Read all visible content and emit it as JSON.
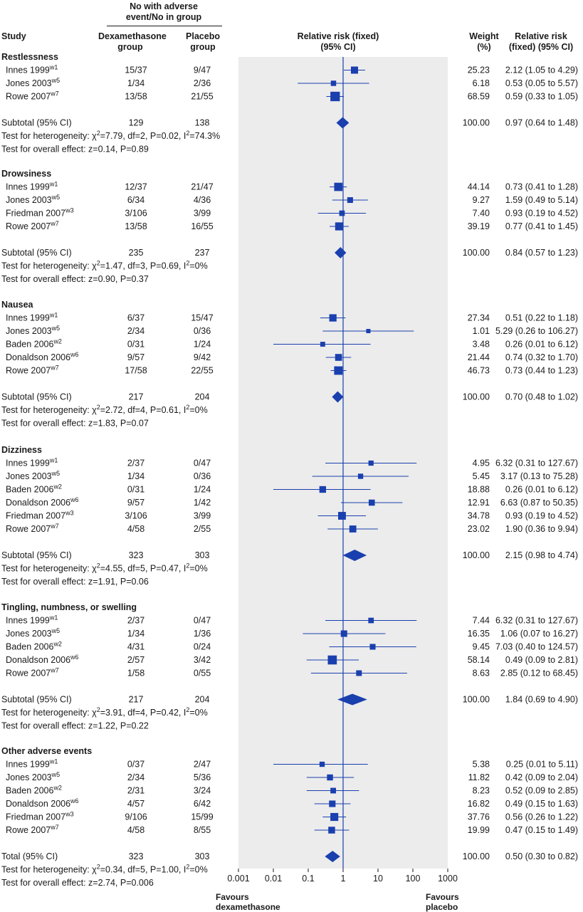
{
  "header": {
    "group_title": "No with adverse event/No in group",
    "study": "Study",
    "dex_group": "Dexamethasone group",
    "placebo_group": "Placebo group",
    "rr_plot": "Relative risk (fixed) (95% CI)",
    "weight": "Weight (%)",
    "rr_text": "Relative risk (fixed) (95% CI)"
  },
  "footer": {
    "favours_left": "Favours dexamethasone",
    "favours_right": "Favours placebo"
  },
  "colors": {
    "marker": "#1a3fae",
    "shade": "#ececec",
    "line": "#1a3fae",
    "text": "#1a1a1a"
  },
  "chart_data": {
    "type": "forest",
    "x_scale": "log",
    "xlim": [
      0.001,
      1000
    ],
    "x_ticks": [
      "0.001",
      "0.01",
      "0.1",
      "1",
      "10",
      "100",
      "1000"
    ],
    "groups": [
      {
        "name": "Restlessness",
        "studies": [
          {
            "study": "Innes 1999",
            "ref": "w1",
            "dex": "15/37",
            "placebo": "9/47",
            "weight": "25.23",
            "ci_text": "2.12 (1.05 to 4.29)",
            "rr": 2.12,
            "lo": 1.05,
            "hi": 4.29
          },
          {
            "study": "Jones 2003",
            "ref": "w5",
            "dex": "1/34",
            "placebo": "2/36",
            "weight": "6.18",
            "ci_text": "0.53 (0.05 to 5.57)",
            "rr": 0.53,
            "lo": 0.05,
            "hi": 5.57
          },
          {
            "study": "Rowe 2007",
            "ref": "w7",
            "dex": "13/58",
            "placebo": "21/55",
            "weight": "68.59",
            "ci_text": "0.59 (0.33 to 1.05)",
            "rr": 0.59,
            "lo": 0.33,
            "hi": 1.05
          }
        ],
        "subtotal": {
          "label": "Subtotal (95% CI)",
          "dex": "129",
          "placebo": "138",
          "weight": "100.00",
          "ci_text": "0.97 (0.64 to 1.48)",
          "rr": 0.97,
          "lo": 0.64,
          "hi": 1.48
        },
        "het_prefix": "Test for heterogeneity: χ",
        "het_mid": "=7.79, df=2, P=0.02, I",
        "het_end": "=74.3%",
        "overall": "Test for overall effect: z=0.14, P=0.89"
      },
      {
        "name": "Drowsiness",
        "studies": [
          {
            "study": "Innes 1999",
            "ref": "w1",
            "dex": "12/37",
            "placebo": "21/47",
            "weight": "44.14",
            "ci_text": "0.73 (0.41 to 1.28)",
            "rr": 0.73,
            "lo": 0.41,
            "hi": 1.28
          },
          {
            "study": "Jones 2003",
            "ref": "w5",
            "dex": "6/34",
            "placebo": "4/36",
            "weight": "9.27",
            "ci_text": "1.59 (0.49 to 5.14)",
            "rr": 1.59,
            "lo": 0.49,
            "hi": 5.14
          },
          {
            "study": "Friedman 2007",
            "ref": "w3",
            "dex": "3/106",
            "placebo": "3/99",
            "weight": "7.40",
            "ci_text": "0.93 (0.19 to 4.52)",
            "rr": 0.93,
            "lo": 0.19,
            "hi": 4.52
          },
          {
            "study": "Rowe 2007",
            "ref": "w7",
            "dex": "13/58",
            "placebo": "16/55",
            "weight": "39.19",
            "ci_text": "0.77 (0.41 to 1.45)",
            "rr": 0.77,
            "lo": 0.41,
            "hi": 1.45
          }
        ],
        "subtotal": {
          "label": "Subtotal (95% CI)",
          "dex": "235",
          "placebo": "237",
          "weight": "100.00",
          "ci_text": "0.84 (0.57 to 1.23)",
          "rr": 0.84,
          "lo": 0.57,
          "hi": 1.23
        },
        "het_prefix": "Test for heterogeneity: χ",
        "het_mid": "=1.47, df=3, P=0.69, I",
        "het_end": "=0%",
        "overall": "Test for overall effect: z=0.90, P=0.37"
      },
      {
        "name": "Nausea",
        "studies": [
          {
            "study": "Innes 1999",
            "ref": "w1",
            "dex": "6/37",
            "placebo": "15/47",
            "weight": "27.34",
            "ci_text": "0.51 (0.22 to 1.18)",
            "rr": 0.51,
            "lo": 0.22,
            "hi": 1.18
          },
          {
            "study": "Jones 2003",
            "ref": "w5",
            "dex": "2/34",
            "placebo": "0/36",
            "weight": "1.01",
            "ci_text": "5.29 (0.26 to 106.27)",
            "rr": 5.29,
            "lo": 0.26,
            "hi": 106.27
          },
          {
            "study": "Baden 2006",
            "ref": "w2",
            "dex": "0/31",
            "placebo": "1/24",
            "weight": "3.48",
            "ci_text": "0.26 (0.01 to 6.12)",
            "rr": 0.26,
            "lo": 0.01,
            "hi": 6.12
          },
          {
            "study": "Donaldson 2006",
            "ref": "w6",
            "dex": "9/57",
            "placebo": "9/42",
            "weight": "21.44",
            "ci_text": "0.74 (0.32 to 1.70)",
            "rr": 0.74,
            "lo": 0.32,
            "hi": 1.7
          },
          {
            "study": "Rowe 2007",
            "ref": "w7",
            "dex": "17/58",
            "placebo": "22/55",
            "weight": "46.73",
            "ci_text": "0.73 (0.44 to 1.23)",
            "rr": 0.73,
            "lo": 0.44,
            "hi": 1.23
          }
        ],
        "subtotal": {
          "label": "Subtotal (95% CI)",
          "dex": "217",
          "placebo": "204",
          "weight": "100.00",
          "ci_text": "0.70 (0.48 to 1.02)",
          "rr": 0.7,
          "lo": 0.48,
          "hi": 1.02
        },
        "het_prefix": "Test for heterogeneity: χ",
        "het_mid": "=2.72, df=4, P=0.61, I",
        "het_end": "=0%",
        "overall": "Test for overall effect: z=1.83, P=0.07"
      },
      {
        "name": "Dizziness",
        "studies": [
          {
            "study": "Innes 1999",
            "ref": "w1",
            "dex": "2/37",
            "placebo": "0/47",
            "weight": "4.95",
            "ci_text": "6.32 (0.31 to 127.67)",
            "rr": 6.32,
            "lo": 0.31,
            "hi": 127.67
          },
          {
            "study": "Jones 2003",
            "ref": "w5",
            "dex": "1/34",
            "placebo": "0/36",
            "weight": "5.45",
            "ci_text": "3.17 (0.13 to 75.28)",
            "rr": 3.17,
            "lo": 0.13,
            "hi": 75.28
          },
          {
            "study": "Baden 2006",
            "ref": "w2",
            "dex": "0/31",
            "placebo": "1/24",
            "weight": "18.88",
            "ci_text": "0.26 (0.01 to 6.12)",
            "rr": 0.26,
            "lo": 0.01,
            "hi": 6.12
          },
          {
            "study": "Donaldson 2006",
            "ref": "w6",
            "dex": "9/57",
            "placebo": "1/42",
            "weight": "12.91",
            "ci_text": "6.63 (0.87 to 50.35)",
            "rr": 6.63,
            "lo": 0.87,
            "hi": 50.35
          },
          {
            "study": "Friedman 2007",
            "ref": "w3",
            "dex": "3/106",
            "placebo": "3/99",
            "weight": "34.78",
            "ci_text": "0.93 (0.19 to 4.52)",
            "rr": 0.93,
            "lo": 0.19,
            "hi": 4.52
          },
          {
            "study": "Rowe 2007",
            "ref": "w7",
            "dex": "4/58",
            "placebo": "2/55",
            "weight": "23.02",
            "ci_text": "1.90 (0.36 to 9.94)",
            "rr": 1.9,
            "lo": 0.36,
            "hi": 9.94
          }
        ],
        "subtotal": {
          "label": "Subtotal (95% CI)",
          "dex": "323",
          "placebo": "303",
          "weight": "100.00",
          "ci_text": "2.15 (0.98 to 4.74)",
          "rr": 2.15,
          "lo": 0.98,
          "hi": 4.74
        },
        "het_prefix": "Test for heterogeneity: χ",
        "het_mid": "=4.55, df=5, P=0.47, I",
        "het_end": "=0%",
        "overall": "Test for overall effect: z=1.91, P=0.06"
      },
      {
        "name": "Tingling, numbness, or swelling",
        "studies": [
          {
            "study": "Innes 1999",
            "ref": "w1",
            "dex": "2/37",
            "placebo": "0/47",
            "weight": "7.44",
            "ci_text": "6.32 (0.31 to 127.67)",
            "rr": 6.32,
            "lo": 0.31,
            "hi": 127.67
          },
          {
            "study": "Jones 2003",
            "ref": "w5",
            "dex": "1/34",
            "placebo": "1/36",
            "weight": "16.35",
            "ci_text": "1.06 (0.07 to 16.27)",
            "rr": 1.06,
            "lo": 0.07,
            "hi": 16.27
          },
          {
            "study": "Baden 2006",
            "ref": "w2",
            "dex": "4/31",
            "placebo": "0/24",
            "weight": "9.45",
            "ci_text": "7.03 (0.40 to 124.57)",
            "rr": 7.03,
            "lo": 0.4,
            "hi": 124.57
          },
          {
            "study": "Donaldson 2006",
            "ref": "w6",
            "dex": "2/57",
            "placebo": "3/42",
            "weight": "58.14",
            "ci_text": "0.49 (0.09 to 2.81)",
            "rr": 0.49,
            "lo": 0.09,
            "hi": 2.81
          },
          {
            "study": "Rowe 2007",
            "ref": "w7",
            "dex": "1/58",
            "placebo": "0/55",
            "weight": "8.63",
            "ci_text": "2.85 (0.12 to 68.45)",
            "rr": 2.85,
            "lo": 0.12,
            "hi": 68.45
          }
        ],
        "subtotal": {
          "label": "Subtotal (95% CI)",
          "dex": "217",
          "placebo": "204",
          "weight": "100.00",
          "ci_text": "1.84 (0.69 to 4.90)",
          "rr": 1.84,
          "lo": 0.69,
          "hi": 4.9
        },
        "het_prefix": "Test for heterogeneity: χ",
        "het_mid": "=3.91, df=4, P=0.42, I",
        "het_end": "=0%",
        "overall": "Test for overall effect: z=1.22, P=0.22"
      },
      {
        "name": "Other adverse events",
        "studies": [
          {
            "study": "Innes 1999",
            "ref": "w1",
            "dex": "0/37",
            "placebo": "2/47",
            "weight": "5.38",
            "ci_text": "0.25 (0.01 to 5.11)",
            "rr": 0.25,
            "lo": 0.01,
            "hi": 5.11
          },
          {
            "study": "Jones 2003",
            "ref": "w5",
            "dex": "2/34",
            "placebo": "5/36",
            "weight": "11.82",
            "ci_text": "0.42 (0.09 to 2.04)",
            "rr": 0.42,
            "lo": 0.09,
            "hi": 2.04
          },
          {
            "study": "Baden 2006",
            "ref": "w2",
            "dex": "2/31",
            "placebo": "3/24",
            "weight": "8.23",
            "ci_text": "0.52 (0.09 to 2.85)",
            "rr": 0.52,
            "lo": 0.09,
            "hi": 2.85
          },
          {
            "study": "Donaldson 2006",
            "ref": "w6",
            "dex": "4/57",
            "placebo": "6/42",
            "weight": "16.82",
            "ci_text": "0.49 (0.15 to 1.63)",
            "rr": 0.49,
            "lo": 0.15,
            "hi": 1.63
          },
          {
            "study": "Friedman 2007",
            "ref": "w3",
            "dex": "9/106",
            "placebo": "15/99",
            "weight": "37.76",
            "ci_text": "0.56 (0.26 to 1.22)",
            "rr": 0.56,
            "lo": 0.26,
            "hi": 1.22
          },
          {
            "study": "Rowe 2007",
            "ref": "w7",
            "dex": "4/58",
            "placebo": "8/55",
            "weight": "19.99",
            "ci_text": "0.47 (0.15 to 1.49)",
            "rr": 0.47,
            "lo": 0.15,
            "hi": 1.49
          }
        ],
        "subtotal": {
          "label": "Total (95% CI)",
          "dex": "323",
          "placebo": "303",
          "weight": "100.00",
          "ci_text": "0.50 (0.30 to 0.82)",
          "rr": 0.5,
          "lo": 0.3,
          "hi": 0.82
        },
        "het_prefix": "Test for heterogeneity: χ",
        "het_mid": "=0.34, df=5, P=1.00, I",
        "het_end": "=0%",
        "overall": "Test for overall effect: z=2.74, P=0.006"
      }
    ]
  }
}
